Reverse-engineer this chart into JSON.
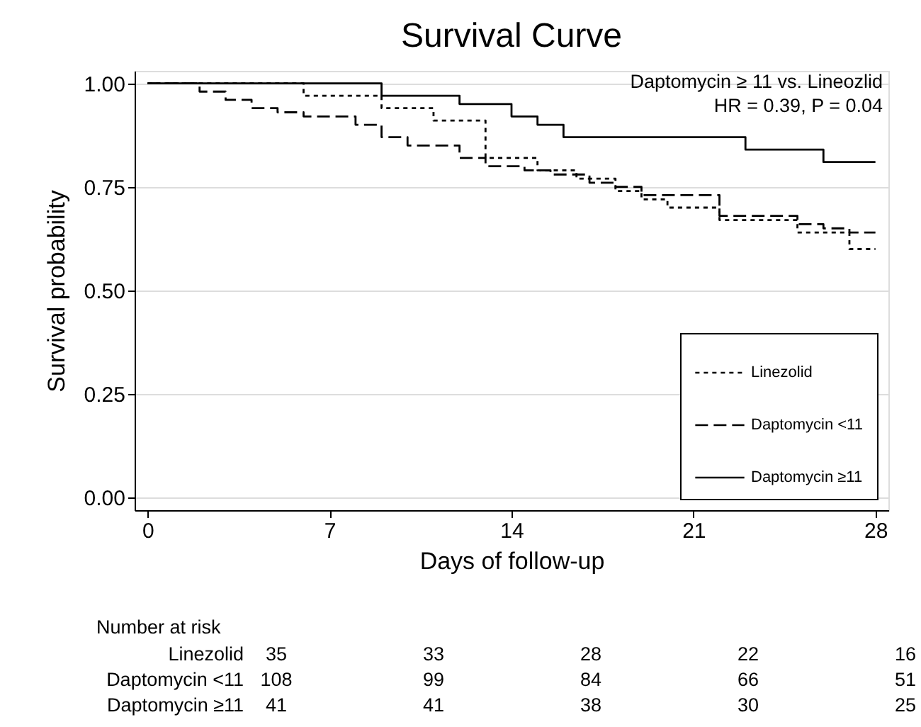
{
  "chart_data": {
    "type": "step",
    "title": "Survival Curve",
    "xlabel": "Days of follow-up",
    "ylabel": "Survival probability",
    "xlim": [
      -0.5,
      28.5
    ],
    "xticks": [
      0,
      7,
      14,
      21,
      28
    ],
    "ylim": [
      -0.03,
      1.03
    ],
    "yticks": [
      {
        "value": 0,
        "label": "0.00"
      },
      {
        "value": 0.25,
        "label": "0.25"
      },
      {
        "value": 0.5,
        "label": "0.50"
      },
      {
        "value": 0.75,
        "label": "0.75"
      },
      {
        "value": 1,
        "label": "1.00"
      }
    ],
    "grid": "y",
    "legend": "bottom right",
    "marker": "none",
    "series": [
      {
        "name": "Linezolid",
        "color": "#000000",
        "line_style": "dotted",
        "x": [
          0,
          6,
          9,
          11,
          13,
          15,
          16.5,
          18,
          19,
          20,
          22,
          25,
          27,
          28
        ],
        "values": [
          1.0,
          0.97,
          0.94,
          0.91,
          0.82,
          0.79,
          0.77,
          0.74,
          0.72,
          0.7,
          0.67,
          0.64,
          0.6,
          0.6
        ]
      },
      {
        "name": "Daptomycin <11",
        "color": "#000000",
        "line_style": "dashed",
        "x": [
          0,
          2,
          3,
          4,
          5,
          6,
          8,
          9,
          10,
          12,
          13,
          14.5,
          15.5,
          17,
          18,
          19,
          22,
          25,
          26,
          27,
          28
        ],
        "values": [
          1.0,
          0.98,
          0.96,
          0.94,
          0.93,
          0.92,
          0.9,
          0.87,
          0.85,
          0.82,
          0.8,
          0.79,
          0.78,
          0.76,
          0.75,
          0.73,
          0.68,
          0.66,
          0.65,
          0.64,
          0.64
        ]
      },
      {
        "name": "Daptomycin ≥11",
        "color": "#000000",
        "line_style": "solid",
        "x": [
          0,
          9,
          12,
          14,
          15,
          16,
          23,
          26,
          28
        ],
        "values": [
          1.0,
          0.97,
          0.95,
          0.92,
          0.9,
          0.87,
          0.84,
          0.81,
          0.81
        ]
      }
    ],
    "annotations": [
      "Daptomycin ≥ 11 vs. Lineozlid",
      "HR = 0.39, P = 0.04",
      "Number at risk",
      "Linezolid",
      "35",
      "33",
      "28",
      "22",
      "16",
      "Daptomycin <11",
      "108",
      "99",
      "84",
      "66",
      "51",
      "Daptomycin ≥11",
      "41",
      "41",
      "38",
      "30",
      "25"
    ]
  }
}
